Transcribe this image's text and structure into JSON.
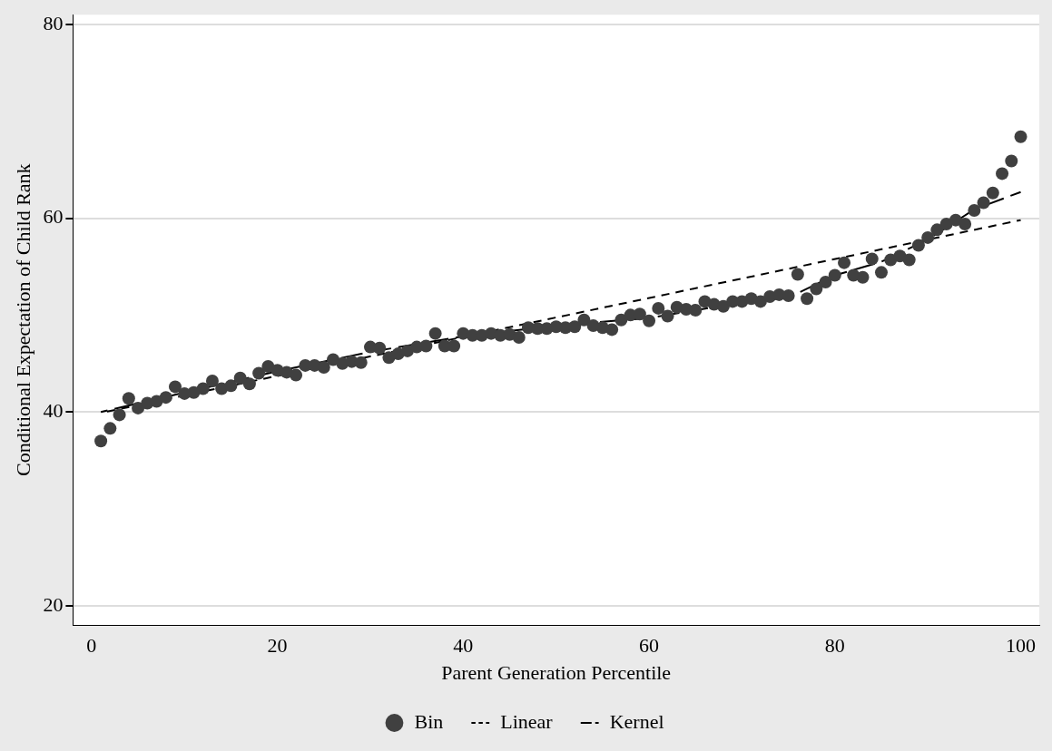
{
  "chart_data": {
    "type": "scatter",
    "xlabel": "Parent Generation Percentile",
    "ylabel": "Conditional Expectation of Child Rank",
    "x": [
      1,
      2,
      3,
      4,
      5,
      6,
      7,
      8,
      9,
      10,
      11,
      12,
      13,
      14,
      15,
      16,
      17,
      18,
      19,
      20,
      21,
      22,
      23,
      24,
      25,
      26,
      27,
      28,
      29,
      30,
      31,
      32,
      33,
      34,
      35,
      36,
      37,
      38,
      39,
      40,
      41,
      42,
      43,
      44,
      45,
      46,
      47,
      48,
      49,
      50,
      51,
      52,
      53,
      54,
      55,
      56,
      57,
      58,
      59,
      60,
      61,
      62,
      63,
      64,
      65,
      66,
      67,
      68,
      69,
      70,
      71,
      72,
      73,
      74,
      75,
      76,
      77,
      78,
      79,
      80,
      81,
      82,
      83,
      84,
      85,
      86,
      87,
      88,
      89,
      90,
      91,
      92,
      93,
      94,
      95,
      96,
      97,
      98,
      99,
      100
    ],
    "series": [
      {
        "name": "Bin",
        "color": "#404040",
        "marker": "circle",
        "values": [
          37.0,
          38.3,
          39.7,
          41.4,
          40.4,
          40.9,
          41.1,
          41.5,
          42.6,
          41.9,
          42.0,
          42.4,
          43.2,
          42.4,
          42.7,
          43.5,
          42.9,
          44.0,
          44.7,
          44.3,
          44.1,
          43.8,
          44.8,
          44.8,
          44.6,
          45.4,
          45.0,
          45.2,
          45.1,
          46.7,
          46.6,
          45.6,
          46.0,
          46.3,
          46.7,
          46.8,
          48.1,
          46.8,
          46.8,
          48.1,
          47.9,
          47.9,
          48.1,
          47.9,
          48.0,
          47.7,
          48.7,
          48.6,
          48.6,
          48.8,
          48.7,
          48.8,
          49.5,
          48.9,
          48.7,
          48.5,
          49.5,
          50.0,
          50.1,
          49.4,
          50.7,
          49.9,
          50.8,
          50.6,
          50.5,
          51.4,
          51.1,
          50.9,
          51.4,
          51.4,
          51.7,
          51.4,
          51.9,
          52.1,
          52.0,
          54.2,
          51.7,
          52.7,
          53.4,
          54.1,
          55.4,
          54.1,
          53.9,
          55.8,
          54.4,
          55.7,
          56.1,
          55.7,
          57.2,
          58.0,
          58.8,
          59.4,
          59.8,
          59.4,
          60.8,
          61.6,
          62.6,
          64.6,
          65.9,
          68.4
        ]
      },
      {
        "name": "Linear",
        "type": "line",
        "color": "#000000",
        "line_style": "dashed",
        "marker": "none",
        "x": [
          1,
          100
        ],
        "values": [
          39.9,
          59.8
        ]
      },
      {
        "name": "Kernel",
        "type": "line",
        "color": "#000000",
        "line_style": "dashed",
        "marker": "none",
        "x": [
          1,
          10,
          20,
          30,
          40,
          50,
          60,
          70,
          75,
          80,
          85,
          90,
          95,
          100
        ],
        "values": [
          40.0,
          42.0,
          44.2,
          46.2,
          47.8,
          48.9,
          49.7,
          51.3,
          51.8,
          54.1,
          55.5,
          57.8,
          60.9,
          62.7
        ]
      }
    ],
    "xlim": [
      -2,
      102
    ],
    "xticks": [
      0,
      20,
      40,
      60,
      80,
      100
    ],
    "ylim": [
      18,
      81
    ],
    "yticks": [
      20,
      40,
      60,
      80
    ],
    "grid": "y",
    "legend": "bottom"
  }
}
